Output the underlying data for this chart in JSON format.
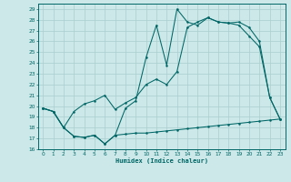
{
  "xlabel": "Humidex (Indice chaleur)",
  "bg_color": "#cce8e8",
  "line_color": "#006666",
  "grid_color": "#aacece",
  "xlim": [
    -0.5,
    23.5
  ],
  "ylim": [
    16,
    29.5
  ],
  "yticks": [
    16,
    17,
    18,
    19,
    20,
    21,
    22,
    23,
    24,
    25,
    26,
    27,
    28,
    29
  ],
  "xticks": [
    0,
    1,
    2,
    3,
    4,
    5,
    6,
    7,
    8,
    9,
    10,
    11,
    12,
    13,
    14,
    15,
    16,
    17,
    18,
    19,
    20,
    21,
    22,
    23
  ],
  "line1_x": [
    0,
    1,
    2,
    3,
    4,
    5,
    6,
    7,
    8,
    9,
    10,
    11,
    12,
    13,
    14,
    15,
    16,
    17,
    18,
    19,
    20,
    21,
    22,
    23
  ],
  "line1_y": [
    19.8,
    19.5,
    18.0,
    17.2,
    17.1,
    17.3,
    16.5,
    17.3,
    17.4,
    17.5,
    17.5,
    17.6,
    17.7,
    17.8,
    17.9,
    18.0,
    18.1,
    18.2,
    18.3,
    18.4,
    18.5,
    18.6,
    18.7,
    18.8
  ],
  "line2_x": [
    0,
    1,
    2,
    3,
    4,
    5,
    6,
    7,
    8,
    9,
    10,
    11,
    12,
    13,
    14,
    15,
    16,
    17,
    18,
    19,
    20,
    21,
    22,
    23
  ],
  "line2_y": [
    19.8,
    19.5,
    18.0,
    19.5,
    20.2,
    20.5,
    21.0,
    19.7,
    20.3,
    20.8,
    22.0,
    22.5,
    22.0,
    23.2,
    27.3,
    27.8,
    28.2,
    27.8,
    27.7,
    27.8,
    27.3,
    26.0,
    20.8,
    18.8
  ],
  "line3_x": [
    0,
    1,
    2,
    3,
    4,
    5,
    6,
    7,
    8,
    9,
    10,
    11,
    12,
    13,
    14,
    15,
    16,
    17,
    18,
    19,
    20,
    21,
    22,
    23
  ],
  "line3_y": [
    19.8,
    19.5,
    18.0,
    17.2,
    17.1,
    17.3,
    16.5,
    17.3,
    19.8,
    20.5,
    24.5,
    27.5,
    23.8,
    29.0,
    27.8,
    27.5,
    28.2,
    27.8,
    27.7,
    27.5,
    26.5,
    25.5,
    20.8,
    18.8
  ]
}
